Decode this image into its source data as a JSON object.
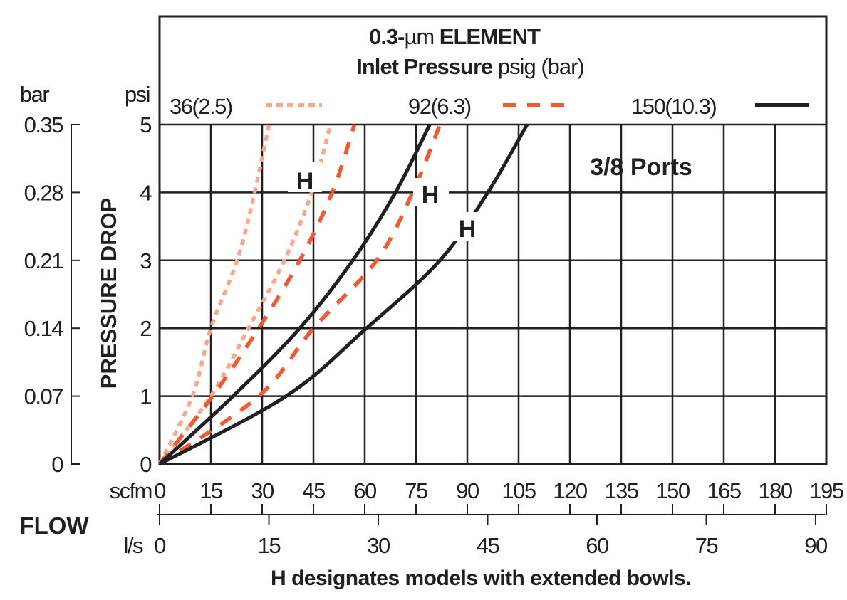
{
  "chart_data": {
    "type": "line",
    "title_line1_bold_a": "0.3-",
    "title_line1_unit": "µm",
    "title_line1_bold_b": " ELEMENT",
    "title_line2_bold": "Inlet Pressure",
    "title_line2_rest": " psig (bar)",
    "annotation_ports": "3/8 Ports",
    "annotation_h": "H",
    "footnote": "H designates models with extended bowls.",
    "ylabel": "PRESSURE DROP",
    "y_unit_psi": "psi",
    "y_unit_bar": "bar",
    "xlabel": "FLOW",
    "x_unit_scfm": "scfm",
    "x_unit_ls": "l/s",
    "xlim_scfm": [
      0,
      195
    ],
    "ylim_psi": [
      0,
      5
    ],
    "grid": true,
    "x_ticks_scfm": [
      "0",
      "15",
      "30",
      "45",
      "60",
      "75",
      "90",
      "105",
      "120",
      "135",
      "150",
      "165",
      "180",
      "195"
    ],
    "x_ticks_ls": [
      "0",
      "15",
      "30",
      "45",
      "60",
      "75",
      "90"
    ],
    "y_ticks_psi": [
      "0",
      "1",
      "2",
      "3",
      "4",
      "5"
    ],
    "y_ticks_bar": [
      "0",
      "0.07",
      "0.14",
      "0.21",
      "0.28",
      "0.35"
    ],
    "legend": [
      {
        "label": "36(2.5)",
        "style": "dotted",
        "color": "#f7a98a"
      },
      {
        "label": "92(6.3)",
        "style": "dashed",
        "color": "#ef5a30"
      },
      {
        "label": "150(10.3)",
        "style": "solid",
        "color": "#231f20"
      }
    ],
    "series": [
      {
        "pressure": "36(2.5)",
        "variant": "standard",
        "points": [
          [
            0,
            0
          ],
          [
            9.6,
            1
          ],
          [
            15,
            2
          ],
          [
            22.7,
            3
          ],
          [
            27.8,
            4
          ],
          [
            32,
            5
          ]
        ]
      },
      {
        "pressure": "36(2.5)",
        "variant": "H",
        "points": [
          [
            0,
            0
          ],
          [
            15,
            1
          ],
          [
            26,
            2
          ],
          [
            36.5,
            3
          ],
          [
            44.5,
            4
          ],
          [
            50,
            5
          ]
        ]
      },
      {
        "pressure": "92(6.3)",
        "variant": "standard",
        "points": [
          [
            0,
            0
          ],
          [
            15.5,
            1
          ],
          [
            29,
            2
          ],
          [
            41,
            3
          ],
          [
            50.5,
            4
          ],
          [
            57,
            5
          ]
        ]
      },
      {
        "pressure": "92(6.3)",
        "variant": "H",
        "points": [
          [
            0,
            0
          ],
          [
            29,
            1
          ],
          [
            45,
            2
          ],
          [
            63.5,
            3
          ],
          [
            74,
            4
          ],
          [
            82,
            5
          ]
        ]
      },
      {
        "pressure": "150(10.3)",
        "variant": "standard",
        "points": [
          [
            0,
            0
          ],
          [
            21.5,
            1
          ],
          [
            41,
            2
          ],
          [
            56.5,
            3
          ],
          [
            69,
            4
          ],
          [
            79,
            5
          ]
        ]
      },
      {
        "pressure": "150(10.3)",
        "variant": "H",
        "points": [
          [
            0,
            0
          ],
          [
            37,
            1
          ],
          [
            60.5,
            2
          ],
          [
            82,
            3
          ],
          [
            96,
            4
          ],
          [
            107.5,
            5
          ]
        ]
      }
    ]
  }
}
